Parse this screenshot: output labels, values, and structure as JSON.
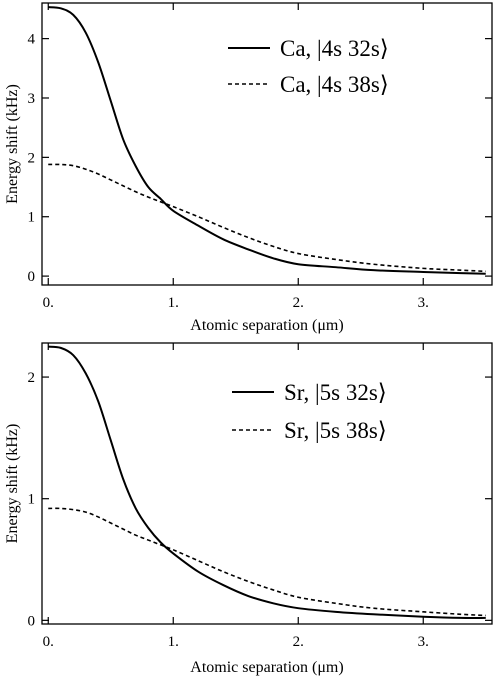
{
  "chart_data": [
    {
      "type": "line",
      "xlabel": "Atomic separation (μm)",
      "ylabel": "Energy shift (kHz)",
      "xlim": [
        -0.05,
        3.55
      ],
      "ylim": [
        -0.15,
        4.6
      ],
      "xticks": [
        0,
        1,
        2,
        3
      ],
      "xtick_labels": [
        "0.",
        "1.",
        "2.",
        "3."
      ],
      "yticks": [
        0,
        1,
        2,
        3,
        4
      ],
      "ytick_labels": [
        "0",
        "1",
        "2",
        "3",
        "4"
      ],
      "legend_position": "top-right",
      "grid": false,
      "series": [
        {
          "name": "Ca, |4s 32s⟩",
          "style": "solid",
          "x": [
            0,
            0.1,
            0.2,
            0.3,
            0.4,
            0.5,
            0.6,
            0.7,
            0.8,
            0.9,
            1.0,
            1.2,
            1.4,
            1.6,
            1.8,
            2.0,
            2.3,
            2.6,
            3.0,
            3.3,
            3.5
          ],
          "y": [
            4.53,
            4.51,
            4.4,
            4.1,
            3.6,
            2.95,
            2.3,
            1.85,
            1.5,
            1.3,
            1.1,
            0.85,
            0.62,
            0.45,
            0.3,
            0.2,
            0.15,
            0.1,
            0.07,
            0.05,
            0.04
          ]
        },
        {
          "name": "Ca, |4s 38s⟩",
          "style": "dashed",
          "x": [
            0,
            0.1,
            0.2,
            0.3,
            0.4,
            0.5,
            0.6,
            0.7,
            0.8,
            0.9,
            1.0,
            1.2,
            1.4,
            1.6,
            1.8,
            2.0,
            2.3,
            2.6,
            3.0,
            3.3,
            3.5
          ],
          "y": [
            1.88,
            1.88,
            1.86,
            1.8,
            1.72,
            1.62,
            1.52,
            1.42,
            1.33,
            1.25,
            1.17,
            1.0,
            0.82,
            0.65,
            0.5,
            0.38,
            0.28,
            0.2,
            0.13,
            0.1,
            0.08
          ]
        }
      ]
    },
    {
      "type": "line",
      "xlabel": "Atomic separation (μm)",
      "ylabel": "Energy shift (kHz)",
      "xlim": [
        -0.05,
        3.55
      ],
      "ylim": [
        -0.03,
        2.28
      ],
      "xticks": [
        0,
        1,
        2,
        3
      ],
      "xtick_labels": [
        "0.",
        "1.",
        "2.",
        "3."
      ],
      "yticks": [
        0,
        1,
        2
      ],
      "ytick_labels": [
        "0",
        "1",
        "2"
      ],
      "legend_position": "top-right",
      "grid": false,
      "series": [
        {
          "name": "Sr, |5s 32s⟩",
          "style": "solid",
          "x": [
            0,
            0.1,
            0.2,
            0.3,
            0.4,
            0.5,
            0.6,
            0.7,
            0.8,
            0.9,
            1.0,
            1.2,
            1.4,
            1.6,
            1.8,
            2.0,
            2.3,
            2.6,
            3.0,
            3.3,
            3.5
          ],
          "y": [
            2.25,
            2.24,
            2.18,
            2.03,
            1.8,
            1.48,
            1.16,
            0.92,
            0.76,
            0.64,
            0.55,
            0.4,
            0.29,
            0.2,
            0.14,
            0.1,
            0.07,
            0.05,
            0.03,
            0.02,
            0.02
          ]
        },
        {
          "name": "Sr, |5s 38s⟩",
          "style": "dashed",
          "x": [
            0,
            0.1,
            0.2,
            0.3,
            0.4,
            0.5,
            0.6,
            0.7,
            0.8,
            0.9,
            1.0,
            1.2,
            1.4,
            1.6,
            1.8,
            2.0,
            2.3,
            2.6,
            3.0,
            3.3,
            3.5
          ],
          "y": [
            0.92,
            0.92,
            0.91,
            0.89,
            0.85,
            0.8,
            0.75,
            0.7,
            0.66,
            0.62,
            0.58,
            0.49,
            0.4,
            0.32,
            0.25,
            0.19,
            0.14,
            0.1,
            0.07,
            0.05,
            0.04
          ]
        }
      ]
    }
  ]
}
